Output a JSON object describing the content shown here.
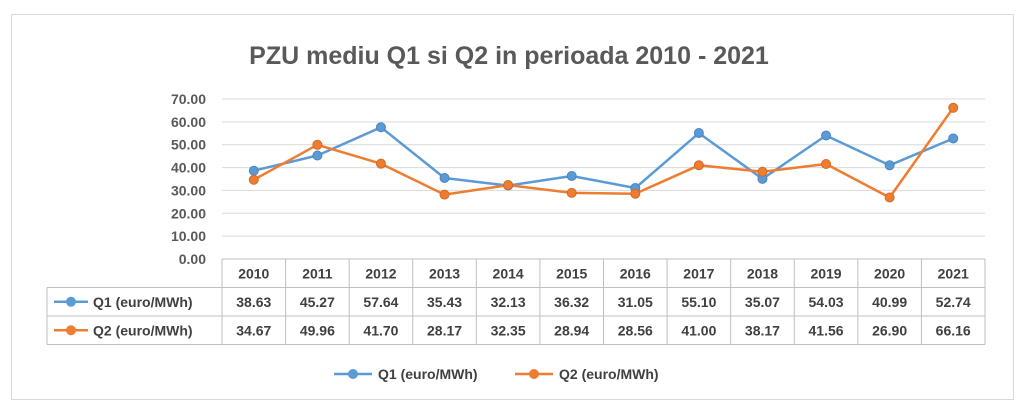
{
  "chart_data": {
    "type": "line",
    "title": "PZU mediu Q1 si Q2 in perioada 2010 - 2021",
    "categories": [
      "2010",
      "2011",
      "2012",
      "2013",
      "2014",
      "2015",
      "2016",
      "2017",
      "2018",
      "2019",
      "2020",
      "2021"
    ],
    "ylim": [
      0,
      70
    ],
    "yticks": [
      "0.00",
      "10.00",
      "20.00",
      "30.00",
      "40.00",
      "50.00",
      "60.00",
      "70.00"
    ],
    "grid": true,
    "legend_position": "bottom",
    "series": [
      {
        "name": "Q1 (euro/MWh)",
        "color": "#5b9bd5",
        "values": [
          38.63,
          45.27,
          57.64,
          35.43,
          32.13,
          36.32,
          31.05,
          55.1,
          35.07,
          54.03,
          40.99,
          52.74
        ],
        "labels": [
          "38.63",
          "45.27",
          "57.64",
          "35.43",
          "32.13",
          "36.32",
          "31.05",
          "55.10",
          "35.07",
          "54.03",
          "40.99",
          "52.74"
        ]
      },
      {
        "name": "Q2 (euro/MWh)",
        "color": "#ed7d31",
        "values": [
          34.67,
          49.96,
          41.7,
          28.17,
          32.35,
          28.94,
          28.56,
          41.0,
          38.17,
          41.56,
          26.9,
          66.16
        ],
        "labels": [
          "34.67",
          "49.96",
          "41.70",
          "28.17",
          "32.35",
          "28.94",
          "28.56",
          "41.00",
          "38.17",
          "41.56",
          "26.90",
          "66.16"
        ]
      }
    ]
  }
}
